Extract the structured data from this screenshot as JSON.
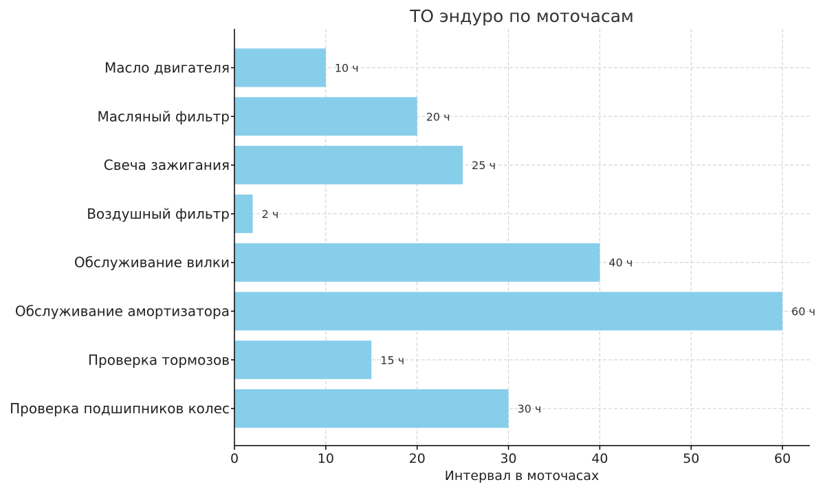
{
  "chart_data": {
    "type": "bar",
    "orientation": "horizontal",
    "title": "ТО эндуро по моточасам",
    "xlabel": "Интервал в моточасах",
    "ylabel": "",
    "categories": [
      "Масло двигателя",
      "Масляный фильтр",
      "Свеча зажигания",
      "Воздушный фильтр",
      "Обслуживание вилки",
      "Обслуживание амортизатора",
      "Проверка тормозов",
      "Проверка подшипников колес"
    ],
    "values": [
      10,
      20,
      25,
      2,
      40,
      60,
      15,
      30
    ],
    "data_labels": [
      "10 ч",
      "20 ч",
      "25 ч",
      "2 ч",
      "40 ч",
      "60 ч",
      "15 ч",
      "30 ч"
    ],
    "xlim": [
      0,
      63
    ],
    "xticks": [
      0,
      10,
      20,
      30,
      40,
      50,
      60
    ],
    "grid": true,
    "bar_color": "#87ceeb"
  }
}
